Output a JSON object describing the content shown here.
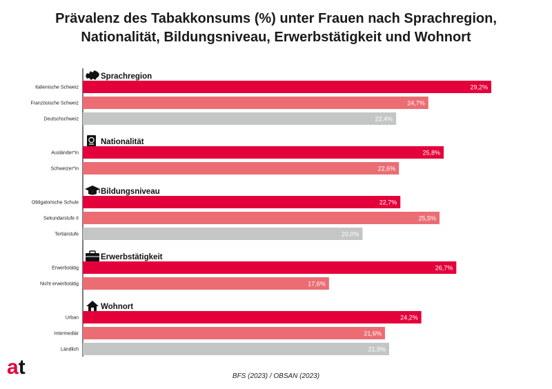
{
  "title_line1": "Prävalenz des Tabakkonsums (%) unter Frauen nach Sprachregion,",
  "title_line2": "Nationalität, Bildungsniveau, Erwerbstätigkeit und Wohnort",
  "source": "BFS (2023) / OBSAN (2023)",
  "logo_text": "at",
  "colors": {
    "red": "#e4003a",
    "salmon": "#eb6d73",
    "gray": "#c3c6c5",
    "axis": "#222222",
    "logo_a": "#e4003a",
    "logo_t": "#111111"
  },
  "chart_data": {
    "type": "bar",
    "orientation": "horizontal",
    "title": "Prävalenz des Tabakkonsums (%) unter Frauen nach Sprachregion, Nationalität, Bildungsniveau, Erwerbstätigkeit und Wohnort",
    "xlabel": "",
    "ylabel": "",
    "unit": "%",
    "xlim": [
      0,
      30
    ],
    "groups": [
      {
        "name": "Sprachregion",
        "icon": "switzerland-map-icon",
        "items": [
          {
            "label": "Italienische Schweiz",
            "value": 29.2,
            "value_label": "29,2%",
            "color": "red"
          },
          {
            "label": "Französische Schweiz",
            "value": 24.7,
            "value_label": "24,7%",
            "color": "salmon"
          },
          {
            "label": "Deutschschweiz",
            "value": 22.4,
            "value_label": "22,4%",
            "color": "gray"
          }
        ]
      },
      {
        "name": "Nationalität",
        "icon": "passport-icon",
        "items": [
          {
            "label": "Ausländer*in",
            "value": 25.8,
            "value_label": "25,8%",
            "color": "red"
          },
          {
            "label": "Schweizer*in",
            "value": 22.6,
            "value_label": "22,6%",
            "color": "salmon"
          }
        ]
      },
      {
        "name": "Bildungsniveau",
        "icon": "graduation-cap-icon",
        "items": [
          {
            "label": "Obligatorische Schule",
            "value": 22.7,
            "value_label": "22,7%",
            "color": "red"
          },
          {
            "label": "Sekundarstufe II",
            "value": 25.5,
            "value_label": "25,5%",
            "color": "salmon"
          },
          {
            "label": "Tertiärstufe",
            "value": 20.0,
            "value_label": "20,0%",
            "color": "gray"
          }
        ]
      },
      {
        "name": "Erwerbstätigkeit",
        "icon": "briefcase-icon",
        "items": [
          {
            "label": "Erwerbstätig",
            "value": 26.7,
            "value_label": "26,7%",
            "color": "red"
          },
          {
            "label": "Nicht erwerbstätig",
            "value": 17.6,
            "value_label": "17,6%",
            "color": "salmon"
          }
        ]
      },
      {
        "name": "Wohnort",
        "icon": "house-icon",
        "items": [
          {
            "label": "Urban",
            "value": 24.2,
            "value_label": "24,2%",
            "color": "red"
          },
          {
            "label": "Intermediär",
            "value": 21.6,
            "value_label": "21,6%",
            "color": "salmon"
          },
          {
            "label": "Ländlich",
            "value": 21.9,
            "value_label": "21,9%",
            "color": "gray"
          }
        ]
      }
    ]
  }
}
